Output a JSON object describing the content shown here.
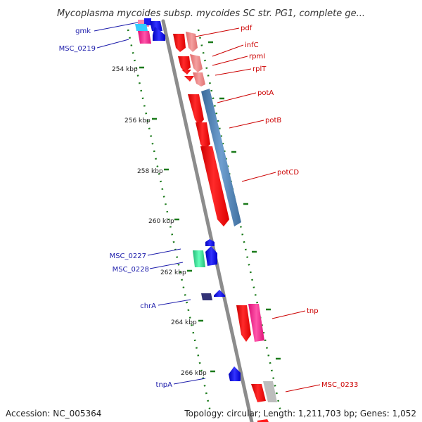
{
  "title": "Mycoplasma mycoides subsp. mycoides SC str. PG1, complete ge...",
  "footer": {
    "accession": "Accession: NC_005364",
    "summary": "Topology: circular; Length: 1,211,703 bp; Genes: 1,052"
  },
  "ticks": [
    "254 kbp",
    "256 kbp",
    "258 kbp",
    "260 kbp",
    "262 kbp",
    "264 kbp",
    "266 kbp"
  ],
  "genes_right": [
    "pdf",
    "infC",
    "rpmI",
    "rplT",
    "potA",
    "potB",
    "potCD",
    "tnp",
    "MSC_0233"
  ],
  "genes_left": [
    "gmk",
    "MSC_0219",
    "MSC_0227",
    "MSC_0228",
    "chrA",
    "tnpA"
  ],
  "colors": {
    "backbone": "#8c8c8c",
    "forward_red": "#ff1a1a",
    "forward_pink": "#f08080",
    "forward_magenta": "#ff3399",
    "reverse_blue": "#1a1aee",
    "reverse_cyan": "#33ccff",
    "reverse_green": "#33dd99",
    "reverse_navy": "#333377",
    "potB_blue": "#4a7fb5",
    "tick_green": "#1a7a1a",
    "label_red": "#cc0000",
    "label_blue": "#1a1aaa",
    "grey_feature": "#bdbdbd"
  }
}
